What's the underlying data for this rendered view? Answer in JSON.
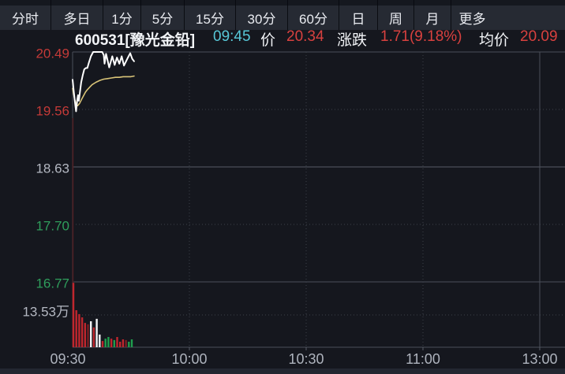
{
  "tabs": [
    {
      "label": "分时"
    },
    {
      "label": "多日"
    },
    {
      "label": "1分"
    },
    {
      "label": "5分"
    },
    {
      "label": "15分"
    },
    {
      "label": "30分"
    },
    {
      "label": "60分"
    },
    {
      "label": "日"
    },
    {
      "label": "周"
    },
    {
      "label": "月"
    },
    {
      "label": "更多"
    }
  ],
  "info": {
    "code_name": "600531[豫光金铅]",
    "time": "09:45",
    "price_label": "价",
    "price": "20.34",
    "change_label": "涨跌",
    "change": "1.71(9.18%)",
    "avg_label": "均价",
    "avg_price": "20.09"
  },
  "colors": {
    "up_red": "#d8413f",
    "axis_red": "#c43a38",
    "axis_green": "#2f9e5c",
    "axis_gray": "#b4b8c2",
    "cyan": "#57c7d7",
    "price_line": "#ffffff",
    "avg_line": "#d9c478",
    "vol_red": "#c0262d",
    "vol_dark_red": "#7c1d22",
    "vol_white": "#f2f3f5",
    "vol_green": "#1f9e4d",
    "grid": "#3d414b",
    "frame": "#4a4f59",
    "prev_close_line": "#565b66",
    "bg": "#15171e"
  },
  "chart_data": {
    "type": "line",
    "title": "600531 豫光金铅 分时走势",
    "legend_position": "none",
    "grid": "dotted",
    "prev_close": 18.63,
    "price_axis": {
      "max": 20.49,
      "min": 16.77,
      "ticks": [
        {
          "label": "20.49",
          "value": 20.49,
          "color": "#c43a38"
        },
        {
          "label": "19.56",
          "value": 19.56,
          "color": "#c43a38"
        },
        {
          "label": "18.63",
          "value": 18.63,
          "color": "#b4b8c2"
        },
        {
          "label": "17.70",
          "value": 17.7,
          "color": "#2f9e5c"
        },
        {
          "label": "16.77",
          "value": 16.77,
          "color": "#2f9e5c"
        }
      ]
    },
    "time_axis": {
      "session": "09:30-11:30 / 13:00-15:00 (view cropped at 13:00)",
      "ticks": [
        {
          "label": "09:30",
          "minute": 0
        },
        {
          "label": "10:00",
          "minute": 30
        },
        {
          "label": "10:30",
          "minute": 60
        },
        {
          "label": "11:00",
          "minute": 90
        },
        {
          "label": "13:00",
          "minute": 120
        }
      ]
    },
    "price_series": [
      [
        0,
        20.04
      ],
      [
        0.3,
        19.85
      ],
      [
        0.7,
        19.62
      ],
      [
        0.9,
        19.53
      ],
      [
        1.2,
        19.71
      ],
      [
        1.4,
        19.79
      ],
      [
        1.6,
        19.7
      ],
      [
        2.2,
        20.0
      ],
      [
        2.6,
        20.11
      ],
      [
        3.0,
        20.21
      ],
      [
        3.4,
        20.23
      ],
      [
        3.8,
        20.23
      ],
      [
        4.2,
        20.32
      ],
      [
        4.7,
        20.42
      ],
      [
        5.3,
        20.49
      ],
      [
        7.6,
        20.49
      ],
      [
        8.0,
        20.44
      ],
      [
        8.2,
        20.3
      ],
      [
        8.6,
        20.46
      ],
      [
        9.4,
        20.24
      ],
      [
        10.2,
        20.42
      ],
      [
        10.8,
        20.28
      ],
      [
        11.4,
        20.4
      ],
      [
        12.0,
        20.3
      ],
      [
        12.6,
        20.42
      ],
      [
        13.2,
        20.27
      ],
      [
        14.2,
        20.4
      ],
      [
        14.8,
        20.47
      ],
      [
        15.3,
        20.38
      ],
      [
        15.8,
        20.34
      ]
    ],
    "avg_series": [
      [
        0,
        19.9
      ],
      [
        0.4,
        19.76
      ],
      [
        0.9,
        19.64
      ],
      [
        1.3,
        19.62
      ],
      [
        1.8,
        19.66
      ],
      [
        2.3,
        19.72
      ],
      [
        2.8,
        19.78
      ],
      [
        3.3,
        19.84
      ],
      [
        3.8,
        19.88
      ],
      [
        4.4,
        19.92
      ],
      [
        5.0,
        19.96
      ],
      [
        6.0,
        20.0
      ],
      [
        7.0,
        20.03
      ],
      [
        8.0,
        20.05
      ],
      [
        9.0,
        20.06
      ],
      [
        10.0,
        20.07
      ],
      [
        11.0,
        20.08
      ],
      [
        12.0,
        20.08
      ],
      [
        13.0,
        20.09
      ],
      [
        14.0,
        20.09
      ],
      [
        15.0,
        20.09
      ],
      [
        15.8,
        20.1
      ]
    ],
    "volume": {
      "unit": "万",
      "gridline_label": "13.53万",
      "gridline_value": 13.53,
      "bars": [
        {
          "minute": 0.0,
          "value": 27.0,
          "color": "red"
        },
        {
          "minute": 0.75,
          "value": 15.5,
          "color": "red"
        },
        {
          "minute": 1.5,
          "value": 13.9,
          "color": "red"
        },
        {
          "minute": 2.25,
          "value": 12.5,
          "color": "red"
        },
        {
          "minute": 3.0,
          "value": 10.2,
          "color": "red"
        },
        {
          "minute": 3.75,
          "value": 9.6,
          "color": "darkred"
        },
        {
          "minute": 4.5,
          "value": 10.9,
          "color": "white"
        },
        {
          "minute": 5.25,
          "value": 8.3,
          "color": "red"
        },
        {
          "minute": 6.0,
          "value": 11.9,
          "color": "white"
        },
        {
          "minute": 6.75,
          "value": 5.3,
          "color": "white"
        },
        {
          "minute": 7.5,
          "value": 2.6,
          "color": "red"
        },
        {
          "minute": 8.25,
          "value": 3.6,
          "color": "green"
        },
        {
          "minute": 9.0,
          "value": 4.3,
          "color": "green"
        },
        {
          "minute": 9.75,
          "value": 3.6,
          "color": "red"
        },
        {
          "minute": 10.5,
          "value": 3.0,
          "color": "green"
        },
        {
          "minute": 11.25,
          "value": 4.3,
          "color": "red"
        },
        {
          "minute": 12.0,
          "value": 2.3,
          "color": "red"
        },
        {
          "minute": 12.75,
          "value": 3.3,
          "color": "red"
        },
        {
          "minute": 13.5,
          "value": 3.0,
          "color": "darkred"
        },
        {
          "minute": 14.25,
          "value": 2.3,
          "color": "green"
        },
        {
          "minute": 15.0,
          "value": 3.3,
          "color": "green"
        }
      ]
    }
  }
}
